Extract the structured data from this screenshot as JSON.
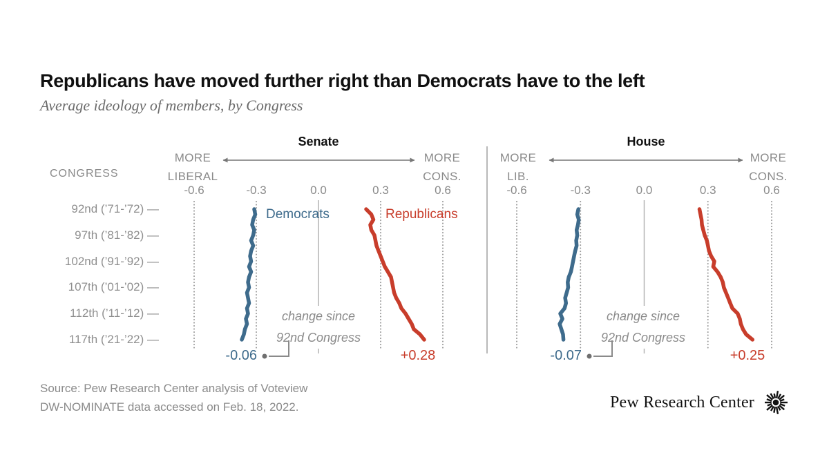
{
  "title": "Republicans have moved further right than Democrats have to the left",
  "subtitle": "Average ideology of members, by Congress",
  "y_axis": {
    "header": "CONGRESS",
    "rows": [
      "92nd (’71-’72) —",
      "97th (’81-’82) —",
      "102nd (’91-’92) —",
      "107th (’01-’02) —",
      "112th (’11-’12) —",
      "117th (’21-’22) —"
    ]
  },
  "legend": {
    "democrats": "Democrats",
    "republicans": "Republicans"
  },
  "annotation": {
    "line1": "change since",
    "line2": "92nd Congress"
  },
  "direction_labels": {
    "senate_left": [
      "MORE",
      "LIBERAL"
    ],
    "senate_right": [
      "MORE",
      "CONS."
    ],
    "house_left": [
      "MORE",
      "LIB."
    ],
    "house_right": [
      "MORE",
      "CONS."
    ]
  },
  "colors": {
    "democrat": "#3E6B8C",
    "republican": "#C83D2B",
    "axis_gray": "#8A8A8A"
  },
  "source_lines": [
    "Source: Pew Research Center analysis of Voteview",
    "DW-NOMINATE data accessed on Feb. 18, 2022."
  ],
  "logo": {
    "text": "Pew Research Center"
  },
  "chart_data": [
    {
      "type": "line",
      "chamber": "Senate",
      "xlabel_left": "MORE LIBERAL",
      "xlabel_right": "MORE CONS.",
      "x_axis_ticks": [
        -0.6,
        -0.3,
        0,
        0.3,
        0.6
      ],
      "x_axis_tick_labels": [
        "-0.6",
        "-0.3",
        "0.0",
        "0.3",
        "0.6"
      ],
      "xlim": [
        -0.7,
        0.7
      ],
      "congress_range": [
        92,
        117
      ],
      "congress_row_ticks": [
        92,
        97,
        102,
        107,
        112,
        117
      ],
      "series": [
        {
          "name": "Democrats",
          "values": [
            -0.31,
            -0.305,
            -0.315,
            -0.32,
            -0.31,
            -0.315,
            -0.325,
            -0.315,
            -0.325,
            -0.33,
            -0.325,
            -0.335,
            -0.325,
            -0.335,
            -0.34,
            -0.335,
            -0.345,
            -0.34,
            -0.335,
            -0.345,
            -0.34,
            -0.35,
            -0.345,
            -0.355,
            -0.36,
            -0.37
          ]
        },
        {
          "name": "Republicans",
          "values": [
            0.23,
            0.255,
            0.265,
            0.25,
            0.255,
            0.27,
            0.275,
            0.28,
            0.29,
            0.3,
            0.31,
            0.32,
            0.335,
            0.35,
            0.355,
            0.36,
            0.365,
            0.375,
            0.39,
            0.4,
            0.42,
            0.435,
            0.45,
            0.46,
            0.49,
            0.51
          ]
        }
      ],
      "change_since_92nd": {
        "democrats": "-0.06",
        "republicans": "+0.28"
      }
    },
    {
      "type": "line",
      "chamber": "House",
      "xlabel_left": "MORE LIB.",
      "xlabel_right": "MORE CONS.",
      "x_axis_ticks": [
        -0.6,
        -0.3,
        0,
        0.3,
        0.6
      ],
      "x_axis_tick_labels": [
        "-0.6",
        "-0.3",
        "0.0",
        "0.3",
        "0.6"
      ],
      "xlim": [
        -0.7,
        0.7
      ],
      "congress_range": [
        92,
        117
      ],
      "congress_row_ticks": [
        92,
        97,
        102,
        107,
        112,
        117
      ],
      "series": [
        {
          "name": "Democrats",
          "values": [
            -0.31,
            -0.315,
            -0.308,
            -0.312,
            -0.318,
            -0.315,
            -0.32,
            -0.318,
            -0.325,
            -0.33,
            -0.335,
            -0.34,
            -0.345,
            -0.355,
            -0.36,
            -0.358,
            -0.365,
            -0.372,
            -0.368,
            -0.375,
            -0.395,
            -0.385,
            -0.398,
            -0.39,
            -0.382,
            -0.38
          ]
        },
        {
          "name": "Republicans",
          "values": [
            0.26,
            0.265,
            0.27,
            0.272,
            0.278,
            0.285,
            0.295,
            0.3,
            0.305,
            0.315,
            0.33,
            0.325,
            0.345,
            0.36,
            0.37,
            0.375,
            0.385,
            0.395,
            0.405,
            0.415,
            0.44,
            0.45,
            0.455,
            0.465,
            0.48,
            0.51
          ]
        }
      ],
      "change_since_92nd": {
        "democrats": "-0.07",
        "republicans": "+0.25"
      }
    }
  ]
}
